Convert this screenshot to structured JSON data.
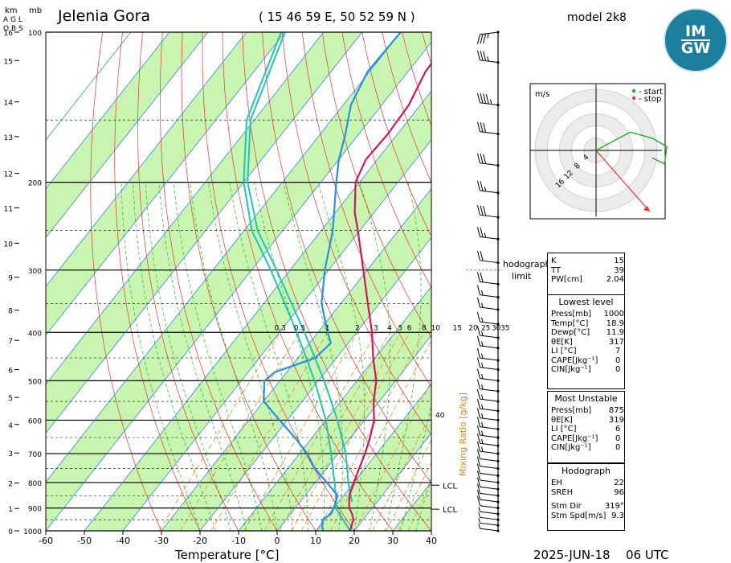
{
  "header": {
    "km_label": "km",
    "agl_label": "A G L",
    "obs_label": "O B S",
    "mb_label": "mb",
    "station": "Jelenia Gora",
    "coords": "( 15 46 59 E, 50 52 59 N )",
    "model": "model 2k8",
    "date": "2025-JUN-18",
    "time": "06 UTC"
  },
  "logo": {
    "text_top": "IM",
    "text_bottom": "GW"
  },
  "hodograph": {
    "unit": "m/s",
    "legend_start": "- start",
    "legend_stop": "- stop",
    "ring_labels": [
      "4",
      "8",
      "12",
      "16"
    ],
    "limit_label_1": "hodograph",
    "limit_label_2": "limit",
    "limit_pressure": 300,
    "trace": [
      [
        0,
        0
      ],
      [
        1.5,
        0.8
      ],
      [
        2.8,
        1.5
      ],
      [
        4.6,
        1.0
      ],
      [
        5.8,
        0.3
      ],
      [
        5.6,
        -1.1
      ],
      [
        4.6,
        -0.6
      ]
    ],
    "storm_motion": [
      4.4,
      -5.0
    ]
  },
  "indices": {
    "K_label": "K",
    "K": "15",
    "TT_label": "TT",
    "TT": "39",
    "PW_label": "PW[cm]",
    "PW": "2.04",
    "lowest_title": "Lowest level",
    "lowest": [
      [
        "Press[mb]",
        "1000"
      ],
      [
        "Temp[°C]",
        "18.9"
      ],
      [
        "Dewp[°C]",
        "11.9"
      ],
      [
        "θE[K]",
        "317"
      ],
      [
        "LI [°C]",
        "7"
      ],
      [
        "CAPE[Jkg⁻¹]",
        "0"
      ],
      [
        "CIN[Jkg⁻¹]",
        "0"
      ]
    ],
    "mu_title": "Most Unstable",
    "mu": [
      [
        "Press[mb]",
        "875"
      ],
      [
        "θE[K]",
        "319"
      ],
      [
        "LI [°C]",
        "6"
      ],
      [
        "CAPE[Jkg⁻¹]",
        "0"
      ],
      [
        "CIN[Jkg⁻¹]",
        "0"
      ]
    ],
    "hodo_title": "Hodograph",
    "hodo": [
      [
        "EH",
        "22"
      ],
      [
        "SREH",
        "96"
      ]
    ],
    "storm": [
      [
        "Stm Dir",
        "319°"
      ],
      [
        "Stm Spd[m/s]",
        "9.3"
      ]
    ]
  },
  "chart_data": {
    "type": "line",
    "xlabel": "Temperature [°C]",
    "xlim": [
      -60,
      40
    ],
    "x_ticks": [
      -60,
      -50,
      -40,
      -30,
      -20,
      -10,
      0,
      10,
      20,
      30,
      40
    ],
    "pressure_ticks": [
      100,
      200,
      300,
      400,
      500,
      600,
      700,
      800,
      900,
      1000
    ],
    "plim": [
      100,
      1000
    ],
    "km_ticks": [
      [
        0,
        1000
      ],
      [
        1,
        902
      ],
      [
        2,
        802
      ],
      [
        3,
        698
      ],
      [
        4,
        612
      ],
      [
        5,
        540
      ],
      [
        6,
        475
      ],
      [
        7,
        415
      ],
      [
        8,
        361
      ],
      [
        9,
        310
      ],
      [
        10,
        265
      ],
      [
        11,
        225
      ],
      [
        12,
        192
      ],
      [
        13,
        162
      ],
      [
        14,
        138
      ],
      [
        15,
        114
      ],
      [
        16,
        100
      ]
    ],
    "mixing_ratio_label": "Mixing Ratio [g/kg]",
    "mixing_ratio_values": [
      "0.3",
      "0.5",
      "1",
      "2",
      "3",
      "4",
      "5",
      "6",
      "8",
      "10",
      "15",
      "20",
      "25",
      "30",
      "35"
    ],
    "mixing_ratio_extra": "40",
    "lcl_labels": [
      "LCL",
      "LCL"
    ],
    "lcl_pressures": [
      810,
      905
    ],
    "series": [
      {
        "name": "Temperature",
        "points": [
          [
            1000,
            18.9
          ],
          [
            975,
            18.2
          ],
          [
            950,
            17.5
          ],
          [
            925,
            16.0
          ],
          [
            900,
            14.0
          ],
          [
            850,
            11.5
          ],
          [
            800,
            10.0
          ],
          [
            750,
            8.5
          ],
          [
            700,
            7.0
          ],
          [
            650,
            5.0
          ],
          [
            600,
            2.5
          ],
          [
            550,
            -1.5
          ],
          [
            500,
            -5.0
          ],
          [
            450,
            -10.5
          ],
          [
            400,
            -16.0
          ],
          [
            350,
            -23.0
          ],
          [
            300,
            -31.0
          ],
          [
            250,
            -40.5
          ],
          [
            230,
            -45.0
          ],
          [
            200,
            -51.0
          ],
          [
            180,
            -53.0
          ],
          [
            160,
            -52.5
          ],
          [
            140,
            -53.0
          ],
          [
            120,
            -55.5
          ],
          [
            100,
            -56.0
          ]
        ]
      },
      {
        "name": "Dew point",
        "points": [
          [
            1000,
            11.9
          ],
          [
            975,
            10.5
          ],
          [
            950,
            9.5
          ],
          [
            925,
            10.5
          ],
          [
            900,
            10.0
          ],
          [
            850,
            8.5
          ],
          [
            800,
            3.0
          ],
          [
            750,
            -3.0
          ],
          [
            700,
            -8.0
          ],
          [
            650,
            -14.5
          ],
          [
            600,
            -22.0
          ],
          [
            550,
            -30.0
          ],
          [
            500,
            -34.0
          ],
          [
            480,
            -33.0
          ],
          [
            450,
            -25.5
          ],
          [
            420,
            -24.5
          ],
          [
            400,
            -27.5
          ],
          [
            350,
            -35.0
          ],
          [
            300,
            -41.0
          ],
          [
            250,
            -47.0
          ],
          [
            200,
            -56.0
          ],
          [
            180,
            -60.0
          ],
          [
            160,
            -63.5
          ],
          [
            140,
            -68.0
          ],
          [
            120,
            -70.5
          ],
          [
            100,
            -70.0
          ]
        ]
      },
      {
        "name": "Parcel path 1",
        "points": [
          [
            1000,
            18.9
          ],
          [
            905,
            11.0
          ],
          [
            850,
            8.0
          ],
          [
            800,
            5.0
          ],
          [
            700,
            -1.8
          ],
          [
            600,
            -10.0
          ],
          [
            500,
            -21.0
          ],
          [
            400,
            -35.5
          ],
          [
            300,
            -55.0
          ],
          [
            250,
            -68.0
          ],
          [
            200,
            -80.0
          ],
          [
            150,
            -92.0
          ],
          [
            100,
            -101.0
          ]
        ]
      },
      {
        "name": "Parcel path 2",
        "points": [
          [
            875,
            13.5
          ],
          [
            810,
            9.2
          ],
          [
            700,
            2.0
          ],
          [
            600,
            -7.0
          ],
          [
            500,
            -18.5
          ],
          [
            400,
            -33.5
          ],
          [
            300,
            -53.5
          ],
          [
            250,
            -66.5
          ],
          [
            200,
            -79.0
          ],
          [
            150,
            -91.0
          ],
          [
            100,
            -100.0
          ]
        ]
      }
    ],
    "wind_barbs": [
      [
        100,
        "ccw",
        35
      ],
      [
        115,
        "cw",
        35
      ],
      [
        140,
        "cw",
        45
      ],
      [
        160,
        "cw",
        30
      ],
      [
        185,
        "cw",
        30
      ],
      [
        210,
        "cw",
        25
      ],
      [
        235,
        "cw",
        30
      ],
      [
        260,
        "cw",
        25
      ],
      [
        290,
        "cw",
        20
      ],
      [
        320,
        "cw",
        20
      ],
      [
        340,
        "cw",
        15
      ],
      [
        360,
        "cw",
        15
      ],
      [
        385,
        "cw",
        15
      ],
      [
        410,
        "cw",
        15
      ],
      [
        430,
        "cw",
        15
      ],
      [
        455,
        "cw",
        15
      ],
      [
        475,
        "cw",
        15
      ],
      [
        500,
        "cw",
        15
      ],
      [
        525,
        "cw",
        15
      ],
      [
        550,
        "cw",
        15
      ],
      [
        575,
        "cw",
        15
      ],
      [
        600,
        "cw",
        15
      ],
      [
        625,
        "cw",
        15
      ],
      [
        650,
        "cw",
        15
      ],
      [
        675,
        "cw",
        15
      ],
      [
        700,
        "cw",
        15
      ],
      [
        725,
        "cw",
        10
      ],
      [
        750,
        "cw",
        10
      ],
      [
        775,
        "cw",
        10
      ],
      [
        800,
        "cw",
        10
      ],
      [
        825,
        "cw",
        10
      ],
      [
        850,
        "cw",
        10
      ],
      [
        875,
        "cw",
        10
      ],
      [
        900,
        "cw",
        10
      ],
      [
        925,
        "cw",
        5
      ],
      [
        950,
        "cw",
        5
      ],
      [
        975,
        "cw",
        5
      ],
      [
        1000,
        "cw",
        5
      ]
    ],
    "colors": {
      "temperature": "#d4145a",
      "dewpoint": "#2b8fe0",
      "parcel": "#21c4b8",
      "band": "#c8f5b0",
      "isotherm": "#2277dd",
      "dry_adiabat": "#e8332a",
      "moist_adiabat": "#22b522",
      "mixing_ratio": "#f08a18"
    }
  }
}
